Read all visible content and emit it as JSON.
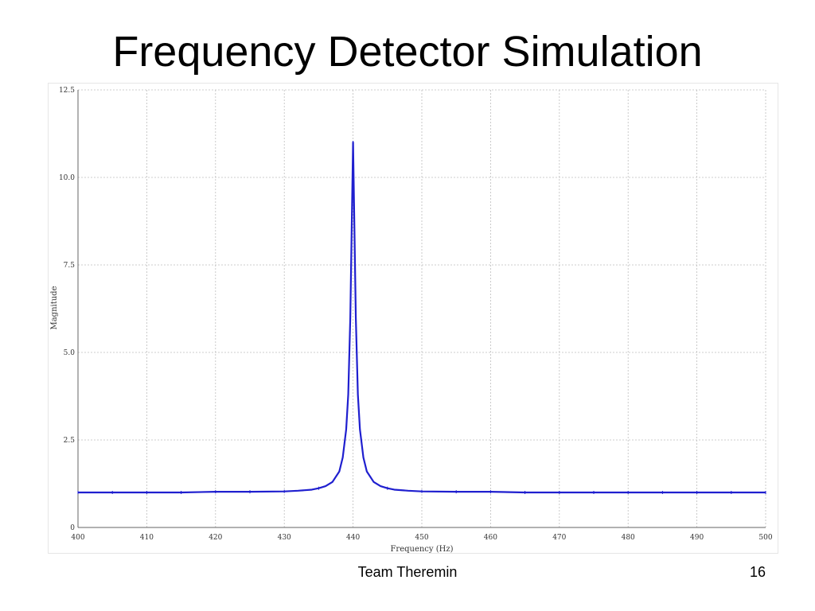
{
  "slide": {
    "title": "Frequency Detector Simulation",
    "footer": "Team Theremin",
    "page_number": "16"
  },
  "chart_data": {
    "type": "line",
    "title": "",
    "xlabel": "Frequency (Hz)",
    "ylabel": "Magnitude",
    "xlim": [
      400,
      500
    ],
    "ylim": [
      0,
      12.5
    ],
    "x_ticks": [
      "400",
      "410",
      "420",
      "430",
      "440",
      "450",
      "460",
      "470",
      "480",
      "490",
      "500"
    ],
    "y_ticks": [
      "0",
      "2.5",
      "5.0",
      "7.5",
      "10.0",
      "12.5"
    ],
    "grid": true,
    "line_color": "#1f1fcf",
    "series": [
      {
        "x": [
          400,
          405,
          410,
          415,
          420,
          425,
          430,
          432,
          434,
          435,
          436,
          437,
          438,
          438.5,
          439,
          439.3,
          439.6,
          439.8,
          440,
          440.2,
          440.4,
          440.7,
          441,
          441.5,
          442,
          443,
          444,
          445,
          446,
          448,
          450,
          455,
          460,
          465,
          470,
          475,
          480,
          485,
          490,
          495,
          500
        ],
        "y": [
          1.0,
          1.0,
          1.0,
          1.0,
          1.02,
          1.02,
          1.03,
          1.05,
          1.08,
          1.12,
          1.18,
          1.3,
          1.6,
          2.0,
          2.8,
          3.8,
          6.0,
          8.5,
          11.0,
          8.5,
          6.0,
          3.8,
          2.8,
          2.0,
          1.6,
          1.3,
          1.18,
          1.12,
          1.08,
          1.05,
          1.03,
          1.02,
          1.02,
          1.0,
          1.0,
          1.0,
          1.0,
          1.0,
          1.0,
          1.0,
          1.0
        ]
      }
    ]
  }
}
